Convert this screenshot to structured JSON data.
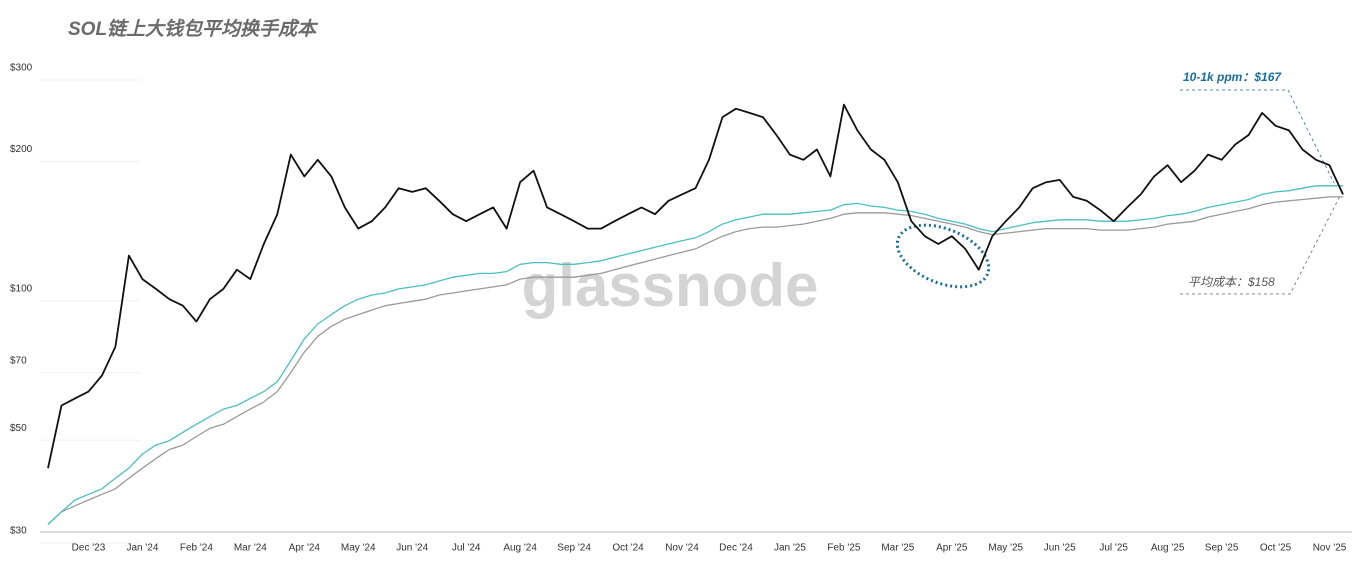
{
  "chart_data": {
    "type": "line",
    "title": "SOL链上大钱包平均换手成本",
    "watermark": "glassnode",
    "log_scale": true,
    "grid": true,
    "categories": [
      null,
      null,
      null,
      "Dec '23",
      null,
      null,
      null,
      "Jan '24",
      null,
      null,
      null,
      "Feb '24",
      null,
      null,
      null,
      "Mar '24",
      null,
      null,
      null,
      "Apr '24",
      null,
      null,
      null,
      "May '24",
      null,
      null,
      null,
      "Jun '24",
      null,
      null,
      null,
      "Jul '24",
      null,
      null,
      null,
      "Aug '24",
      null,
      null,
      null,
      "Sep '24",
      null,
      null,
      null,
      "Oct '24",
      null,
      null,
      null,
      "Nov '24",
      null,
      null,
      null,
      "Dec '24",
      null,
      null,
      null,
      "Jan '25",
      null,
      null,
      null,
      "Feb '25",
      null,
      null,
      null,
      "Mar '25",
      null,
      null,
      null,
      "Apr '25",
      null,
      null,
      null,
      "May '25",
      null,
      null,
      null,
      "Jun '25",
      null,
      null,
      null,
      "Jul '25",
      null,
      null,
      null,
      "Aug '25",
      null,
      null,
      null,
      "Sep '25",
      null,
      null,
      null,
      "Oct '25",
      null,
      null,
      null,
      "Nov '25",
      null
    ],
    "series": [
      {
        "color": "#111111",
        "values": [
          41,
          56,
          58,
          60,
          65,
          75,
          118,
          105,
          100,
          95,
          92,
          85,
          95,
          100,
          110,
          105,
          125,
          145,
          195,
          175,
          190,
          175,
          150,
          135,
          140,
          150,
          165,
          162,
          165,
          155,
          145,
          140,
          145,
          150,
          135,
          170,
          180,
          150,
          145,
          140,
          135,
          135,
          140,
          145,
          150,
          145,
          155,
          160,
          165,
          190,
          235,
          245,
          240,
          235,
          215,
          195,
          190,
          200,
          175,
          250,
          220,
          200,
          190,
          170,
          140,
          130,
          125,
          130,
          122,
          110,
          130,
          140,
          150,
          165,
          170,
          172,
          158,
          155,
          148,
          140,
          150,
          160,
          175,
          185,
          170,
          180,
          195,
          190,
          205,
          215,
          240,
          225,
          220,
          200,
          190,
          185,
          160
        ]
      },
      {
        "color": "#4dbfbf",
        "values": [
          31,
          33,
          35,
          36,
          37,
          39,
          41,
          44,
          46,
          47,
          49,
          51,
          53,
          55,
          56,
          58,
          60,
          63,
          70,
          78,
          84,
          88,
          92,
          95,
          97,
          98,
          100,
          101,
          102,
          104,
          106,
          107,
          108,
          108,
          109,
          113,
          114,
          114,
          113,
          113,
          114,
          115,
          117,
          119,
          121,
          123,
          125,
          127,
          129,
          133,
          138,
          141,
          143,
          145,
          145,
          145,
          146,
          147,
          148,
          152,
          153,
          151,
          150,
          148,
          147,
          145,
          142,
          140,
          138,
          135,
          133,
          135,
          137,
          139,
          140,
          141,
          141,
          141,
          140,
          140,
          140,
          141,
          142,
          144,
          145,
          147,
          150,
          152,
          154,
          156,
          160,
          162,
          163,
          165,
          167,
          167,
          167
        ]
      },
      {
        "color": "#9a9a9a",
        "values": [
          31,
          33,
          34,
          35,
          36,
          37,
          39,
          41,
          43,
          45,
          46,
          48,
          50,
          51,
          53,
          55,
          57,
          60,
          66,
          73,
          79,
          83,
          86,
          88,
          90,
          92,
          93,
          94,
          95,
          97,
          98,
          99,
          100,
          101,
          102,
          105,
          106,
          106,
          106,
          106,
          107,
          108,
          110,
          112,
          114,
          116,
          118,
          120,
          122,
          126,
          130,
          133,
          135,
          136,
          136,
          137,
          138,
          140,
          142,
          145,
          146,
          146,
          146,
          145,
          144,
          142,
          140,
          138,
          136,
          133,
          131,
          132,
          133,
          134,
          135,
          135,
          135,
          135,
          134,
          134,
          134,
          135,
          136,
          138,
          139,
          140,
          143,
          145,
          147,
          149,
          152,
          154,
          155,
          156,
          157,
          158,
          158
        ]
      }
    ],
    "ylim": [
      30,
      300
    ],
    "yticks": [
      {
        "value": 30,
        "label": "$30"
      },
      {
        "value": 50,
        "label": "$50"
      },
      {
        "value": 70,
        "label": "$70"
      },
      {
        "value": 100,
        "label": "$100"
      },
      {
        "value": 200,
        "label": "$200"
      },
      {
        "value": 300,
        "label": "$300"
      }
    ],
    "annotations": [
      "10-1k ppm：$167",
      "平均成本：$158"
    ]
  }
}
